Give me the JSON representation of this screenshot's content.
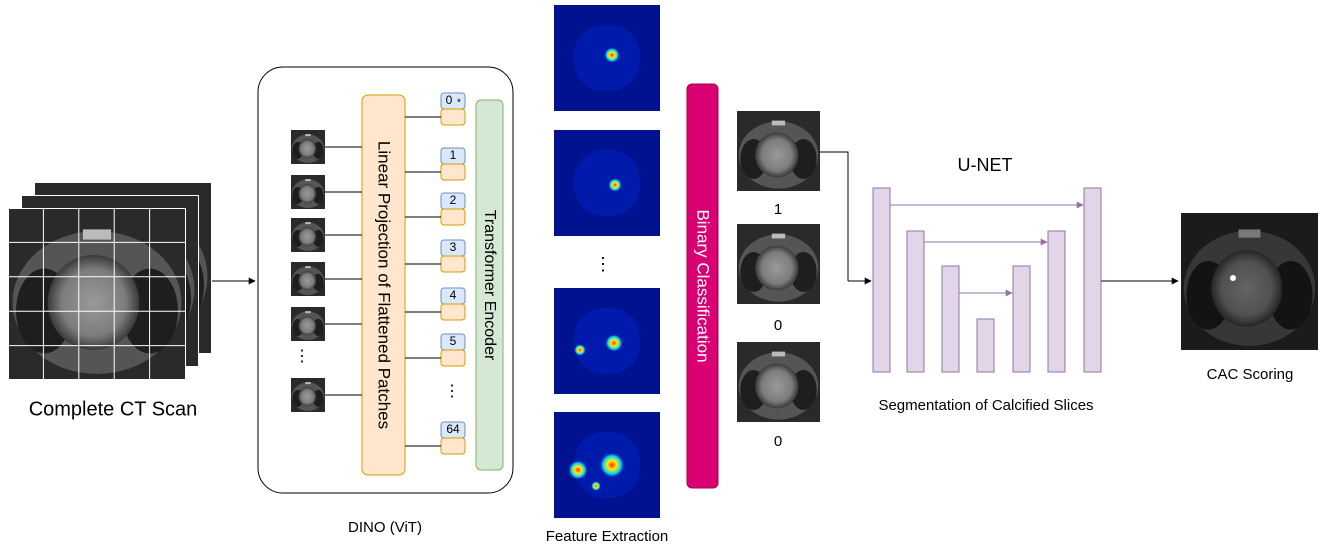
{
  "input": {
    "label": "Complete CT Scan"
  },
  "dino": {
    "label": "DINO (ViT)",
    "projection": "Linear Projection of Flattened Patches",
    "encoder": "Transformer Encoder",
    "tokens": [
      "0",
      "1",
      "2",
      "3",
      "4",
      "5",
      "⋮",
      "64"
    ],
    "class_token_mark": "*",
    "patch_ellipsis": "⋮"
  },
  "feature_extraction": {
    "label": "Feature Extraction",
    "ellipsis": "⋮"
  },
  "classifier": {
    "label": "Binary Classification"
  },
  "slices": {
    "labels": [
      "1",
      "0",
      "0"
    ]
  },
  "unet": {
    "title": "U-NET",
    "label": "Segmentation of Calcified Slices"
  },
  "output": {
    "label": "CAC Scoring"
  }
}
